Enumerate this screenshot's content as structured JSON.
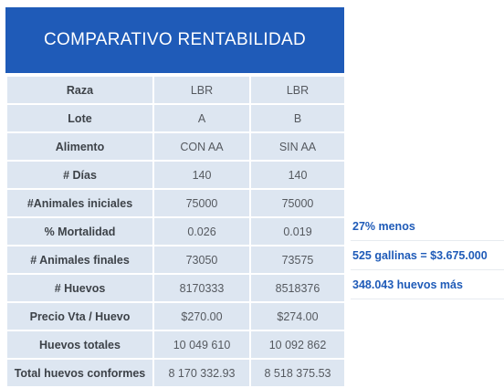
{
  "title": "COMPARATIVO RENTABILIDAD",
  "rows": [
    {
      "label": "Raza",
      "a": "LBR",
      "b": "LBR"
    },
    {
      "label": "Lote",
      "a": "A",
      "b": "B"
    },
    {
      "label": "Alimento",
      "a": "CON AA",
      "b": "SIN AA"
    },
    {
      "label": "# Días",
      "a": "140",
      "b": "140"
    },
    {
      "label": "#Animales iniciales",
      "a": "75000",
      "b": "75000"
    },
    {
      "label": "% Mortalidad",
      "a": "0.026",
      "b": "0.019"
    },
    {
      "label": "# Animales finales",
      "a": "73050",
      "b": "73575"
    },
    {
      "label": "# Huevos",
      "a": "8170333",
      "b": "8518376"
    },
    {
      "label": "Precio Vta / Huevo",
      "a": "$270.00",
      "b": "$274.00"
    },
    {
      "label": "Huevos totales",
      "a": "10 049 610",
      "b": "10 092 862"
    },
    {
      "label": "Total huevos conformes",
      "a": "8 170 332.93",
      "b": "8 518 375.53"
    }
  ],
  "notes": [
    "27% menos",
    "525 gallinas = $3.675.000",
    "348.043 huevos más"
  ],
  "colors": {
    "title_bg": "#1f5bb8",
    "cell_bg": "#dde6f1",
    "note_text": "#1f5bb8"
  }
}
